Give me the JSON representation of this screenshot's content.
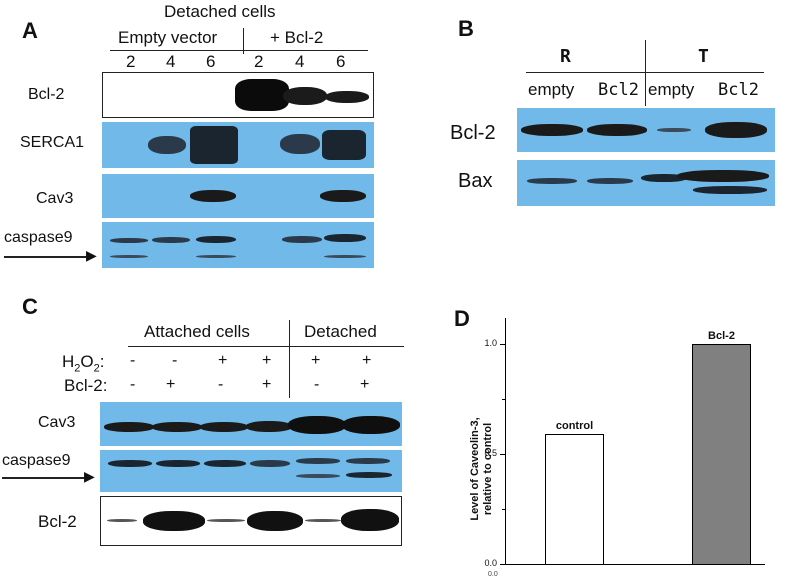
{
  "panelA": {
    "label": "A",
    "header": "Detached cells",
    "group1": "Empty vector",
    "group2": "+ Bcl-2",
    "lanes": [
      "2",
      "4",
      "6",
      "2",
      "4",
      "6"
    ],
    "rows": [
      "Bcl-2",
      "SERCA1",
      "Cav3",
      "caspase9"
    ]
  },
  "panelB": {
    "label": "B",
    "group1": "R",
    "group2": "T",
    "lanes": [
      "empty",
      "Bcl2",
      "empty",
      "Bcl2"
    ],
    "rows": [
      "Bcl-2",
      "Bax"
    ]
  },
  "panelC": {
    "label": "C",
    "group1": "Attached cells",
    "group2": "Detached",
    "h2o2_label": "H2O2:",
    "bcl2_label": "Bcl-2:",
    "h2o2": [
      "-",
      "-",
      "+",
      "+",
      "+",
      "+"
    ],
    "bcl2": [
      "-",
      "+",
      "-",
      "+",
      "-",
      "+"
    ],
    "rows": [
      "Cav3",
      "caspase9",
      "Bcl-2"
    ]
  },
  "panelD": {
    "label": "D",
    "ylabel_line1": "Level of Caveolin-3,",
    "ylabel_line2": "relative to control",
    "tick_labels": [
      "0.0",
      "0.5",
      "1.0"
    ],
    "bottom_tick": "0.0"
  },
  "chart_data": {
    "type": "bar",
    "categories": [
      "control",
      "Bcl-2"
    ],
    "values": [
      0.59,
      1.0
    ],
    "ylim": [
      0,
      1.1
    ],
    "ylabel": "Level of Caveolin-3, relative to control",
    "colors": [
      "#ffffff",
      "#808080"
    ]
  }
}
